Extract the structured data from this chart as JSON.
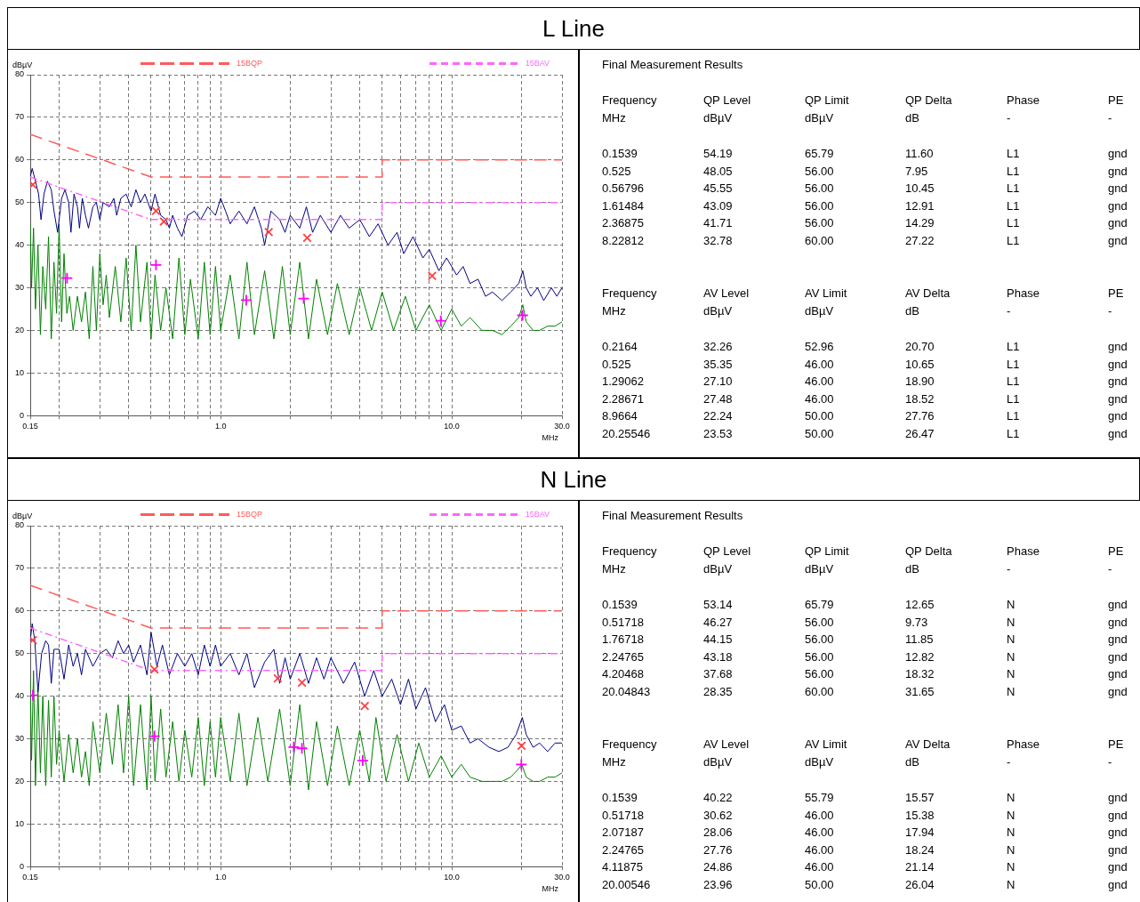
{
  "chart_data": [
    {
      "type": "line",
      "title": "L Line",
      "xlabel": "MHz",
      "ylabel": "dBµV",
      "log": "x",
      "grid": true,
      "legend": "top",
      "xlim": [
        0.15,
        30
      ],
      "ylim": [
        0,
        80
      ],
      "xticks": [
        0.15,
        {
          "value": 0.2,
          "label": null
        },
        {
          "value": 0.3,
          "label": null
        },
        {
          "value": 0.4,
          "label": null
        },
        {
          "value": 0.5,
          "label": null
        },
        {
          "value": 0.6,
          "label": null
        },
        {
          "value": 0.7,
          "label": null
        },
        {
          "value": 0.8,
          "label": null
        },
        {
          "value": 0.9,
          "label": null
        },
        {
          "value": 1,
          "label": "1.0"
        },
        {
          "value": 2,
          "label": null
        },
        {
          "value": 3,
          "label": null
        },
        {
          "value": 4,
          "label": null
        },
        {
          "value": 5,
          "label": null
        },
        {
          "value": 6,
          "label": null
        },
        {
          "value": 7,
          "label": null
        },
        {
          "value": 8,
          "label": null
        },
        {
          "value": 9,
          "label": null
        },
        {
          "value": 10,
          "label": "10.0"
        },
        {
          "value": 20,
          "label": null
        },
        {
          "value": 30,
          "label": "30.0"
        }
      ],
      "yticks": [
        0,
        10,
        20,
        30,
        40,
        50,
        60,
        70,
        80
      ],
      "series": [
        {
          "name": "15BQP",
          "type": "line",
          "line_style": "dashed",
          "marker": "none",
          "color": "#ff5a5a",
          "x": [
            0.15,
            0.5,
            5,
            5,
            30
          ],
          "values": [
            66,
            56,
            56,
            60,
            60
          ]
        },
        {
          "name": "15BAV",
          "type": "line",
          "line_style": "dashed",
          "marker": "none",
          "color": "#ff66ff",
          "x": [
            0.15,
            0.5,
            5,
            5,
            30
          ],
          "values": [
            56,
            46,
            46,
            50,
            50
          ]
        },
        {
          "type": "line",
          "marker": "none",
          "color": "#000080",
          "x": [
            0.15,
            0.153,
            0.158,
            0.163,
            0.167,
            0.172,
            0.178,
            0.185,
            0.19,
            0.197,
            0.205,
            0.212,
            0.22,
            0.225,
            0.232,
            0.24,
            0.245,
            0.252,
            0.26,
            0.268,
            0.28,
            0.29,
            0.3,
            0.31,
            0.33,
            0.345,
            0.355,
            0.37,
            0.39,
            0.41,
            0.43,
            0.45,
            0.47,
            0.5,
            0.52,
            0.55,
            0.58,
            0.6,
            0.62,
            0.65,
            0.68,
            0.72,
            0.77,
            0.82,
            0.88,
            0.95,
            1.0,
            1.05,
            1.1,
            1.2,
            1.3,
            1.4,
            1.5,
            1.55,
            1.65,
            1.8,
            1.9,
            2.0,
            2.2,
            2.35,
            2.5,
            2.7,
            3.0,
            3.3,
            3.6,
            4.0,
            4.4,
            4.8,
            5.3,
            5.8,
            6.2,
            6.8,
            7.5,
            8.0,
            8.8,
            9.5,
            10.5,
            11.2,
            12,
            13,
            14,
            15,
            16.5,
            18,
            19.5,
            20.3,
            21,
            22,
            23.5,
            25,
            27,
            28.5,
            30
          ],
          "values": [
            56,
            58,
            55,
            52,
            46,
            52,
            55,
            53,
            48,
            43,
            51,
            53,
            50,
            43,
            52,
            49,
            44,
            51,
            47,
            44,
            49,
            50,
            46,
            50,
            49,
            51,
            47,
            51,
            52,
            49,
            53,
            50,
            52,
            48,
            52,
            47,
            46,
            44,
            47,
            44,
            42,
            47,
            48,
            46,
            49,
            47,
            51,
            48,
            45,
            48,
            45,
            49,
            44,
            40,
            48,
            46,
            43,
            47,
            44,
            49,
            43,
            47,
            43,
            47,
            44,
            46,
            42,
            45,
            40,
            43,
            38,
            42,
            37,
            39,
            34,
            37,
            33,
            35,
            31,
            32,
            28,
            29,
            27,
            29,
            31,
            34,
            30,
            28,
            30,
            27,
            30,
            28,
            30
          ]
        },
        {
          "type": "line",
          "marker": "none",
          "color": "#008000",
          "x": [
            0.15,
            0.152,
            0.155,
            0.158,
            0.162,
            0.166,
            0.17,
            0.175,
            0.18,
            0.185,
            0.19,
            0.195,
            0.2,
            0.205,
            0.21,
            0.216,
            0.222,
            0.23,
            0.24,
            0.25,
            0.26,
            0.27,
            0.28,
            0.29,
            0.3,
            0.31,
            0.32,
            0.33,
            0.35,
            0.37,
            0.39,
            0.41,
            0.43,
            0.45,
            0.48,
            0.5,
            0.52,
            0.55,
            0.58,
            0.62,
            0.66,
            0.7,
            0.74,
            0.8,
            0.85,
            0.9,
            0.95,
            1.0,
            1.1,
            1.2,
            1.3,
            1.4,
            1.55,
            1.7,
            1.85,
            2.0,
            2.2,
            2.4,
            2.6,
            2.9,
            3.2,
            3.6,
            4.0,
            4.5,
            5.0,
            5.6,
            6.3,
            7.0,
            8.0,
            9.0,
            10,
            11,
            12,
            13.5,
            15,
            16.5,
            18,
            19.5,
            20.3,
            21,
            22.5,
            24,
            26,
            28,
            30
          ],
          "values": [
            45,
            30,
            44,
            25,
            40,
            19,
            35,
            25,
            42,
            18,
            36,
            24,
            45,
            22,
            38,
            24,
            28,
            20,
            28,
            22,
            29,
            18,
            35,
            20,
            38,
            26,
            33,
            23,
            35,
            22,
            37,
            20,
            40,
            22,
            36,
            18,
            33,
            20,
            30,
            18,
            37,
            19,
            32,
            18,
            36,
            19,
            35,
            20,
            33,
            18,
            36,
            19,
            34,
            18,
            35,
            19,
            36,
            18,
            32,
            19,
            31,
            19,
            30,
            20,
            29,
            20,
            28,
            20,
            26,
            20,
            25,
            21,
            23,
            20,
            20,
            19,
            21,
            23,
            26,
            22,
            20,
            20,
            21,
            21,
            22
          ]
        },
        {
          "type": "scatter",
          "marker": "cross",
          "color": "#ff4040",
          "x": [
            0.1539,
            0.525,
            0.56796,
            1.61484,
            2.36875,
            8.22812
          ],
          "values": [
            54.19,
            48.05,
            45.55,
            43.09,
            41.71,
            32.78
          ]
        },
        {
          "type": "scatter",
          "marker": "cross",
          "color": "#ff00ff",
          "x": [
            0.2164,
            0.525,
            1.29062,
            2.28671,
            8.9664,
            20.25546
          ],
          "values": [
            32.26,
            35.35,
            27.1,
            27.48,
            22.24,
            23.53
          ]
        }
      ]
    },
    {
      "type": "other",
      "title": "Final Measurement Results",
      "annotations": [
        "Frequency",
        "QP Level",
        "QP Limit",
        "QP Delta",
        "Phase",
        "PE",
        "MHz",
        "dBµV",
        "dBµV",
        "dB",
        "-",
        "-",
        "0.1539",
        "54.19",
        "65.79",
        "11.60",
        "L1",
        "gnd",
        "0.525",
        "48.05",
        "56.00",
        "7.95",
        "L1",
        "gnd",
        "0.56796",
        "45.55",
        "56.00",
        "10.45",
        "L1",
        "gnd",
        "1.61484",
        "43.09",
        "56.00",
        "12.91",
        "L1",
        "gnd",
        "2.36875",
        "41.71",
        "56.00",
        "14.29",
        "L1",
        "gnd",
        "8.22812",
        "32.78",
        "60.00",
        "27.22",
        "L1",
        "gnd",
        "Frequency",
        "AV Level",
        "AV Limit",
        "AV Delta",
        "Phase",
        "PE",
        "MHz",
        "dBµV",
        "dBµV",
        "dB",
        "-",
        "-",
        "0.2164",
        "32.26",
        "52.96",
        "20.70",
        "L1",
        "gnd",
        "0.525",
        "35.35",
        "46.00",
        "10.65",
        "L1",
        "gnd",
        "1.29062",
        "27.10",
        "46.00",
        "18.90",
        "L1",
        "gnd",
        "2.28671",
        "27.48",
        "46.00",
        "18.52",
        "L1",
        "gnd",
        "8.9664",
        "22.24",
        "50.00",
        "27.76",
        "L1",
        "gnd",
        "20.25546",
        "23.53",
        "50.00",
        "26.47",
        "L1",
        "gnd"
      ]
    },
    {
      "type": "line",
      "title": "N Line",
      "xlabel": "MHz",
      "ylabel": "dBµV",
      "log": "x",
      "grid": true,
      "legend": "top",
      "xlim": [
        0.15,
        30
      ],
      "ylim": [
        0,
        80
      ],
      "xticks": [
        0.15,
        {
          "value": 0.2,
          "label": null
        },
        {
          "value": 0.3,
          "label": null
        },
        {
          "value": 0.4,
          "label": null
        },
        {
          "value": 0.5,
          "label": null
        },
        {
          "value": 0.6,
          "label": null
        },
        {
          "value": 0.7,
          "label": null
        },
        {
          "value": 0.8,
          "label": null
        },
        {
          "value": 0.9,
          "label": null
        },
        {
          "value": 1,
          "label": "1.0"
        },
        {
          "value": 2,
          "label": null
        },
        {
          "value": 3,
          "label": null
        },
        {
          "value": 4,
          "label": null
        },
        {
          "value": 5,
          "label": null
        },
        {
          "value": 6,
          "label": null
        },
        {
          "value": 7,
          "label": null
        },
        {
          "value": 8,
          "label": null
        },
        {
          "value": 9,
          "label": null
        },
        {
          "value": 10,
          "label": "10.0"
        },
        {
          "value": 20,
          "label": null
        },
        {
          "value": 30,
          "label": "30.0"
        }
      ],
      "yticks": [
        0,
        10,
        20,
        30,
        40,
        50,
        60,
        70,
        80
      ],
      "series": [
        {
          "name": "15BQP",
          "type": "line",
          "line_style": "dashed",
          "marker": "none",
          "color": "#ff5a5a",
          "x": [
            0.15,
            0.5,
            5,
            5,
            30
          ],
          "values": [
            66,
            56,
            56,
            60,
            60
          ]
        },
        {
          "name": "15BAV",
          "type": "line",
          "line_style": "dashed",
          "marker": "none",
          "color": "#ff66ff",
          "x": [
            0.15,
            0.5,
            5,
            5,
            30
          ],
          "values": [
            56,
            46,
            46,
            50,
            50
          ]
        },
        {
          "type": "line",
          "marker": "none",
          "color": "#000080",
          "x": [
            0.15,
            0.153,
            0.157,
            0.162,
            0.168,
            0.175,
            0.18,
            0.185,
            0.19,
            0.2,
            0.21,
            0.22,
            0.23,
            0.24,
            0.25,
            0.26,
            0.28,
            0.3,
            0.32,
            0.34,
            0.36,
            0.38,
            0.4,
            0.42,
            0.45,
            0.48,
            0.5,
            0.53,
            0.56,
            0.6,
            0.65,
            0.7,
            0.75,
            0.8,
            0.85,
            0.9,
            0.95,
            1.0,
            1.1,
            1.2,
            1.3,
            1.4,
            1.55,
            1.7,
            1.8,
            1.9,
            2.0,
            2.2,
            2.4,
            2.6,
            2.8,
            3.0,
            3.4,
            3.8,
            4.2,
            4.6,
            5.0,
            5.5,
            6.0,
            6.5,
            7.0,
            7.7,
            8.5,
            9.3,
            10,
            11,
            12,
            13,
            14.5,
            16,
            17.5,
            19,
            20.2,
            21,
            22.5,
            24,
            26,
            28,
            30
          ],
          "values": [
            53,
            57,
            53,
            41,
            50,
            53,
            52,
            43,
            51,
            51,
            44,
            52,
            47,
            50,
            45,
            51,
            47,
            50,
            51,
            49,
            53,
            50,
            52,
            48,
            52,
            45,
            55,
            47,
            52,
            45,
            50,
            47,
            50,
            45,
            52,
            47,
            52,
            47,
            50,
            45,
            50,
            42,
            48,
            51,
            43,
            49,
            44,
            50,
            43,
            49,
            44,
            49,
            43,
            48,
            40,
            46,
            40,
            44,
            38,
            44,
            37,
            42,
            34,
            38,
            32,
            33,
            29,
            30,
            28,
            27,
            28,
            31,
            35,
            31,
            28,
            29,
            27,
            29,
            29
          ]
        },
        {
          "type": "line",
          "marker": "none",
          "color": "#008000",
          "x": [
            0.15,
            0.152,
            0.155,
            0.158,
            0.162,
            0.166,
            0.17,
            0.175,
            0.18,
            0.185,
            0.19,
            0.195,
            0.2,
            0.21,
            0.22,
            0.23,
            0.24,
            0.25,
            0.26,
            0.27,
            0.28,
            0.3,
            0.32,
            0.34,
            0.36,
            0.38,
            0.4,
            0.42,
            0.45,
            0.48,
            0.5,
            0.52,
            0.55,
            0.58,
            0.62,
            0.66,
            0.7,
            0.75,
            0.8,
            0.85,
            0.9,
            0.95,
            1.0,
            1.1,
            1.2,
            1.3,
            1.45,
            1.6,
            1.8,
            2.0,
            2.2,
            2.4,
            2.6,
            2.9,
            3.2,
            3.6,
            4.0,
            4.4,
            4.7,
            5.2,
            5.8,
            6.5,
            7.2,
            8.0,
            9.0,
            10,
            11,
            12,
            13.5,
            15,
            16.5,
            18,
            19.5,
            20.1,
            21,
            22.5,
            24,
            26,
            28,
            30
          ],
          "values": [
            44,
            25,
            46,
            19,
            42,
            22,
            40,
            19,
            39,
            21,
            40,
            24,
            32,
            20,
            31,
            22,
            30,
            21,
            27,
            19,
            34,
            22,
            36,
            24,
            38,
            22,
            40,
            19,
            38,
            18,
            40,
            20,
            37,
            21,
            34,
            20,
            32,
            21,
            35,
            19,
            34,
            21,
            35,
            20,
            36,
            19,
            35,
            20,
            37,
            19,
            38,
            18,
            34,
            19,
            33,
            19,
            32,
            20,
            35,
            20,
            31,
            20,
            29,
            21,
            26,
            21,
            24,
            21,
            20,
            20,
            20,
            21,
            23,
            24,
            21,
            20,
            20,
            21,
            21,
            22
          ]
        },
        {
          "type": "scatter",
          "marker": "cross",
          "color": "#ff4040",
          "x": [
            0.1539,
            0.51718,
            1.76718,
            2.24765,
            4.20468,
            20.04843
          ],
          "values": [
            53.14,
            46.27,
            44.15,
            43.18,
            37.68,
            28.35
          ]
        },
        {
          "type": "scatter",
          "marker": "cross",
          "color": "#ff00ff",
          "x": [
            0.1539,
            0.51718,
            2.07187,
            2.24765,
            4.11875,
            20.00546
          ],
          "values": [
            40.22,
            30.62,
            28.06,
            27.76,
            24.86,
            23.96
          ]
        }
      ]
    },
    {
      "type": "other",
      "title": "Final Measurement Results",
      "annotations": [
        "Frequency",
        "QP Level",
        "QP Limit",
        "QP Delta",
        "Phase",
        "PE",
        "MHz",
        "dBµV",
        "dBµV",
        "dB",
        "-",
        "-",
        "0.1539",
        "53.14",
        "65.79",
        "12.65",
        "N",
        "gnd",
        "0.51718",
        "46.27",
        "56.00",
        "9.73",
        "N",
        "gnd",
        "1.76718",
        "44.15",
        "56.00",
        "11.85",
        "N",
        "gnd",
        "2.24765",
        "43.18",
        "56.00",
        "12.82",
        "N",
        "gnd",
        "4.20468",
        "37.68",
        "56.00",
        "18.32",
        "N",
        "gnd",
        "20.04843",
        "28.35",
        "60.00",
        "31.65",
        "N",
        "gnd",
        "Frequency",
        "AV Level",
        "AV Limit",
        "AV Delta",
        "Phase",
        "PE",
        "MHz",
        "dBµV",
        "dBµV",
        "dB",
        "-",
        "-",
        "0.1539",
        "40.22",
        "55.79",
        "15.57",
        "N",
        "gnd",
        "0.51718",
        "30.62",
        "46.00",
        "15.38",
        "N",
        "gnd",
        "2.07187",
        "28.06",
        "46.00",
        "17.94",
        "N",
        "gnd",
        "2.24765",
        "27.76",
        "46.00",
        "18.24",
        "N",
        "gnd",
        "4.11875",
        "24.86",
        "46.00",
        "21.14",
        "N",
        "gnd",
        "20.00546",
        "23.96",
        "50.00",
        "26.04",
        "N",
        "gnd"
      ]
    }
  ]
}
